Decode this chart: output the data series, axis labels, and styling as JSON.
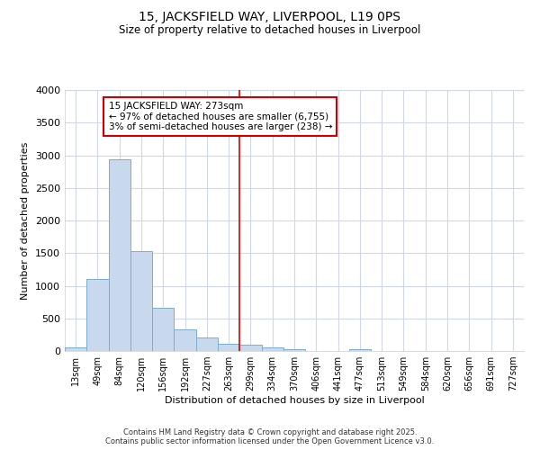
{
  "title": "15, JACKSFIELD WAY, LIVERPOOL, L19 0PS",
  "subtitle": "Size of property relative to detached houses in Liverpool",
  "xlabel": "Distribution of detached houses by size in Liverpool",
  "ylabel": "Number of detached properties",
  "bar_labels": [
    "13sqm",
    "49sqm",
    "84sqm",
    "120sqm",
    "156sqm",
    "192sqm",
    "227sqm",
    "263sqm",
    "299sqm",
    "334sqm",
    "370sqm",
    "406sqm",
    "441sqm",
    "477sqm",
    "513sqm",
    "549sqm",
    "584sqm",
    "620sqm",
    "656sqm",
    "691sqm",
    "727sqm"
  ],
  "bar_values": [
    55,
    1110,
    2940,
    1530,
    665,
    330,
    205,
    110,
    90,
    55,
    30,
    0,
    0,
    30,
    0,
    0,
    0,
    0,
    0,
    0,
    0
  ],
  "bar_color": "#c8d8ed",
  "bar_edge_color": "#7aaed0",
  "vline_x_idx": 7,
  "annotation_text": "15 JACKSFIELD WAY: 273sqm\n← 97% of detached houses are smaller (6,755)\n3% of semi-detached houses are larger (238) →",
  "annotation_box_facecolor": "#ffffff",
  "annotation_box_edgecolor": "#cc0000",
  "vline_color": "#dd0000",
  "background_color": "#ffffff",
  "plot_background": "#ffffff",
  "grid_color": "#d0d8e8",
  "ylim": [
    0,
    4000
  ],
  "yticks": [
    0,
    500,
    1000,
    1500,
    2000,
    2500,
    3000,
    3500,
    4000
  ],
  "footer_line1": "Contains HM Land Registry data © Crown copyright and database right 2025.",
  "footer_line2": "Contains public sector information licensed under the Open Government Licence v3.0."
}
